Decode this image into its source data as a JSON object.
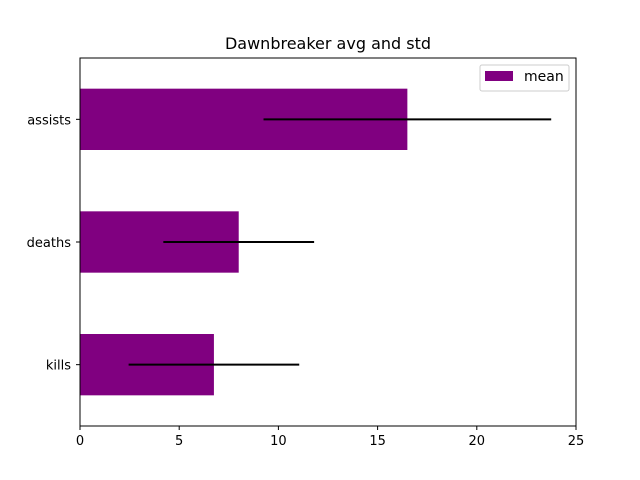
{
  "chart_data": {
    "type": "bar",
    "orientation": "horizontal",
    "title": "Dawnbreaker avg and std",
    "xlabel": "",
    "ylabel": "",
    "categories": [
      "kills",
      "deaths",
      "assists"
    ],
    "series": [
      {
        "name": "mean",
        "values": [
          6.75,
          8.0,
          16.5
        ],
        "error": [
          4.3,
          3.8,
          7.25
        ],
        "color": "#800080"
      }
    ],
    "xlim": [
      0,
      25
    ],
    "xticks": [
      0,
      5,
      10,
      15,
      20,
      25
    ],
    "grid": false,
    "legend_position": "top-right",
    "error_bar_color": "#000000"
  }
}
